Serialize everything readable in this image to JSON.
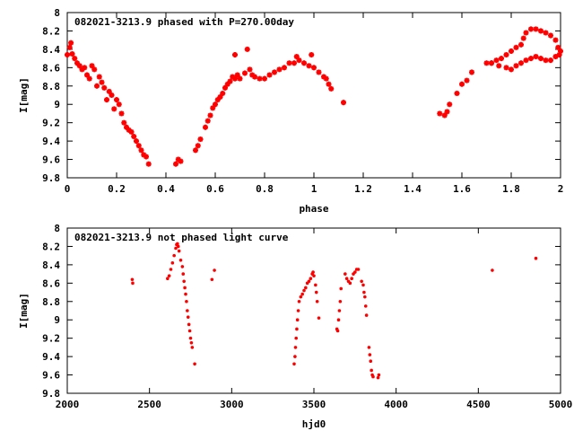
{
  "chart_data": [
    {
      "type": "scatter",
      "title": "082021-3213.9 phased with P=270.00day",
      "xlabel": "phase",
      "ylabel": "I[mag]",
      "xlim": [
        0,
        2
      ],
      "ylim": [
        9.8,
        8
      ],
      "y_inverted": true,
      "xticks": [
        "0",
        "0.2",
        "0.4",
        "0.6",
        "0.8",
        "1",
        "1.2",
        "1.4",
        "1.6",
        "1.8",
        "2"
      ],
      "yticks": [
        "8",
        "8.2",
        "8.4",
        "8.6",
        "8.8",
        "9",
        "9.2",
        "9.4",
        "9.6",
        "9.8"
      ],
      "grid": false,
      "marker_color": "#ff0000",
      "marker": "asterisk",
      "series": [
        {
          "points": [
            [
              0.0,
              8.46
            ],
            [
              0.01,
              8.38
            ],
            [
              0.015,
              8.33
            ],
            [
              0.02,
              8.45
            ],
            [
              0.03,
              8.5
            ],
            [
              0.04,
              8.55
            ],
            [
              0.05,
              8.58
            ],
            [
              0.06,
              8.62
            ],
            [
              0.07,
              8.6
            ],
            [
              0.08,
              8.68
            ],
            [
              0.09,
              8.72
            ],
            [
              0.1,
              8.58
            ],
            [
              0.11,
              8.62
            ],
            [
              0.12,
              8.8
            ],
            [
              0.13,
              8.7
            ],
            [
              0.14,
              8.76
            ],
            [
              0.15,
              8.82
            ],
            [
              0.16,
              8.95
            ],
            [
              0.17,
              8.86
            ],
            [
              0.18,
              8.9
            ],
            [
              0.19,
              9.05
            ],
            [
              0.2,
              8.95
            ],
            [
              0.21,
              9.0
            ],
            [
              0.22,
              9.1
            ],
            [
              0.23,
              9.2
            ],
            [
              0.24,
              9.25
            ],
            [
              0.25,
              9.28
            ],
            [
              0.26,
              9.3
            ],
            [
              0.27,
              9.35
            ],
            [
              0.28,
              9.4
            ],
            [
              0.29,
              9.45
            ],
            [
              0.3,
              9.5
            ],
            [
              0.31,
              9.55
            ],
            [
              0.32,
              9.57
            ],
            [
              0.33,
              9.65
            ],
            [
              0.44,
              9.65
            ],
            [
              0.45,
              9.6
            ],
            [
              0.46,
              9.62
            ],
            [
              0.52,
              9.5
            ],
            [
              0.53,
              9.45
            ],
            [
              0.54,
              9.38
            ],
            [
              0.56,
              9.25
            ],
            [
              0.57,
              9.18
            ],
            [
              0.58,
              9.12
            ],
            [
              0.59,
              9.04
            ],
            [
              0.6,
              9.0
            ],
            [
              0.61,
              8.95
            ],
            [
              0.62,
              8.92
            ],
            [
              0.63,
              8.88
            ],
            [
              0.64,
              8.82
            ],
            [
              0.65,
              8.78
            ],
            [
              0.66,
              8.75
            ],
            [
              0.67,
              8.7
            ],
            [
              0.68,
              8.72
            ],
            [
              0.69,
              8.68
            ],
            [
              0.7,
              8.72
            ],
            [
              0.72,
              8.66
            ],
            [
              0.74,
              8.62
            ],
            [
              0.75,
              8.68
            ],
            [
              0.76,
              8.7
            ],
            [
              0.78,
              8.72
            ],
            [
              0.8,
              8.72
            ],
            [
              0.82,
              8.68
            ],
            [
              0.84,
              8.65
            ],
            [
              0.86,
              8.62
            ],
            [
              0.88,
              8.6
            ],
            [
              0.9,
              8.55
            ],
            [
              0.92,
              8.55
            ],
            [
              0.94,
              8.52
            ],
            [
              0.96,
              8.55
            ],
            [
              0.98,
              8.58
            ],
            [
              1.0,
              8.6
            ],
            [
              1.02,
              8.65
            ],
            [
              1.04,
              8.7
            ],
            [
              1.05,
              8.72
            ],
            [
              1.06,
              8.78
            ],
            [
              1.07,
              8.83
            ],
            [
              1.12,
              8.98
            ],
            [
              0.68,
              8.46
            ],
            [
              0.73,
              8.4
            ],
            [
              0.93,
              8.48
            ],
            [
              0.99,
              8.46
            ],
            [
              1.51,
              9.1
            ],
            [
              1.53,
              9.12
            ],
            [
              1.54,
              9.08
            ],
            [
              1.55,
              9.0
            ],
            [
              1.58,
              8.88
            ],
            [
              1.6,
              8.78
            ],
            [
              1.62,
              8.74
            ],
            [
              1.64,
              8.65
            ],
            [
              1.7,
              8.55
            ],
            [
              1.72,
              8.55
            ],
            [
              1.74,
              8.52
            ],
            [
              1.76,
              8.5
            ],
            [
              1.78,
              8.46
            ],
            [
              1.8,
              8.42
            ],
            [
              1.82,
              8.38
            ],
            [
              1.84,
              8.35
            ],
            [
              1.85,
              8.28
            ],
            [
              1.86,
              8.22
            ],
            [
              1.88,
              8.18
            ],
            [
              1.9,
              8.18
            ],
            [
              1.92,
              8.2
            ],
            [
              1.94,
              8.22
            ],
            [
              1.96,
              8.25
            ],
            [
              1.98,
              8.3
            ],
            [
              1.99,
              8.38
            ],
            [
              2.0,
              8.42
            ],
            [
              1.72,
              8.55
            ],
            [
              1.75,
              8.58
            ],
            [
              1.78,
              8.6
            ],
            [
              1.8,
              8.62
            ],
            [
              1.82,
              8.58
            ],
            [
              1.84,
              8.55
            ],
            [
              1.86,
              8.52
            ],
            [
              1.88,
              8.5
            ],
            [
              1.9,
              8.48
            ],
            [
              1.92,
              8.5
            ],
            [
              1.94,
              8.52
            ],
            [
              1.96,
              8.52
            ],
            [
              1.98,
              8.48
            ],
            [
              1.995,
              8.46
            ]
          ]
        }
      ]
    },
    {
      "type": "scatter",
      "title": "082021-3213.9 not phased light curve",
      "xlabel": "hjd0",
      "ylabel": "I[mag]",
      "xlim": [
        2000,
        5000
      ],
      "ylim": [
        9.8,
        8
      ],
      "y_inverted": true,
      "xticks": [
        "2000",
        "2500",
        "3000",
        "3500",
        "4000",
        "4500",
        "5000"
      ],
      "yticks": [
        "8",
        "8.2",
        "8.4",
        "8.6",
        "8.8",
        "9",
        "9.2",
        "9.4",
        "9.6",
        "9.8"
      ],
      "grid": false,
      "marker_color": "#ff0000",
      "marker": "dot",
      "series": [
        {
          "points": [
            [
              2395,
              8.56
            ],
            [
              2398,
              8.6
            ],
            [
              2610,
              8.55
            ],
            [
              2620,
              8.52
            ],
            [
              2630,
              8.45
            ],
            [
              2640,
              8.38
            ],
            [
              2650,
              8.3
            ],
            [
              2660,
              8.22
            ],
            [
              2665,
              8.18
            ],
            [
              2670,
              8.17
            ],
            [
              2675,
              8.2
            ],
            [
              2680,
              8.25
            ],
            [
              2690,
              8.35
            ],
            [
              2700,
              8.42
            ],
            [
              2705,
              8.5
            ],
            [
              2710,
              8.58
            ],
            [
              2715,
              8.65
            ],
            [
              2720,
              8.72
            ],
            [
              2725,
              8.8
            ],
            [
              2730,
              8.9
            ],
            [
              2735,
              8.97
            ],
            [
              2740,
              9.05
            ],
            [
              2745,
              9.12
            ],
            [
              2750,
              9.2
            ],
            [
              2755,
              9.25
            ],
            [
              2760,
              9.3
            ],
            [
              2775,
              9.48
            ],
            [
              2880,
              8.56
            ],
            [
              2895,
              8.46
            ],
            [
              3380,
              9.48
            ],
            [
              3385,
              9.4
            ],
            [
              3388,
              9.3
            ],
            [
              3392,
              9.2
            ],
            [
              3396,
              9.1
            ],
            [
              3400,
              9.0
            ],
            [
              3405,
              8.9
            ],
            [
              3410,
              8.8
            ],
            [
              3420,
              8.75
            ],
            [
              3430,
              8.72
            ],
            [
              3440,
              8.68
            ],
            [
              3450,
              8.65
            ],
            [
              3460,
              8.6
            ],
            [
              3470,
              8.58
            ],
            [
              3480,
              8.55
            ],
            [
              3490,
              8.5
            ],
            [
              3495,
              8.48
            ],
            [
              3500,
              8.52
            ],
            [
              3510,
              8.62
            ],
            [
              3515,
              8.7
            ],
            [
              3520,
              8.8
            ],
            [
              3530,
              8.98
            ],
            [
              3640,
              9.1
            ],
            [
              3645,
              9.12
            ],
            [
              3650,
              9.0
            ],
            [
              3655,
              8.9
            ],
            [
              3660,
              8.8
            ],
            [
              3665,
              8.66
            ],
            [
              3690,
              8.5
            ],
            [
              3700,
              8.55
            ],
            [
              3710,
              8.58
            ],
            [
              3720,
              8.6
            ],
            [
              3730,
              8.55
            ],
            [
              3740,
              8.5
            ],
            [
              3750,
              8.48
            ],
            [
              3760,
              8.45
            ],
            [
              3770,
              8.45
            ],
            [
              3790,
              8.58
            ],
            [
              3800,
              8.62
            ],
            [
              3805,
              8.7
            ],
            [
              3810,
              8.75
            ],
            [
              3815,
              8.85
            ],
            [
              3820,
              8.95
            ],
            [
              3835,
              9.3
            ],
            [
              3840,
              9.38
            ],
            [
              3845,
              9.45
            ],
            [
              3850,
              9.55
            ],
            [
              3855,
              9.6
            ],
            [
              3860,
              9.62
            ],
            [
              3890,
              9.63
            ],
            [
              3895,
              9.6
            ],
            [
              4585,
              8.46
            ],
            [
              4850,
              8.33
            ]
          ]
        }
      ]
    }
  ]
}
